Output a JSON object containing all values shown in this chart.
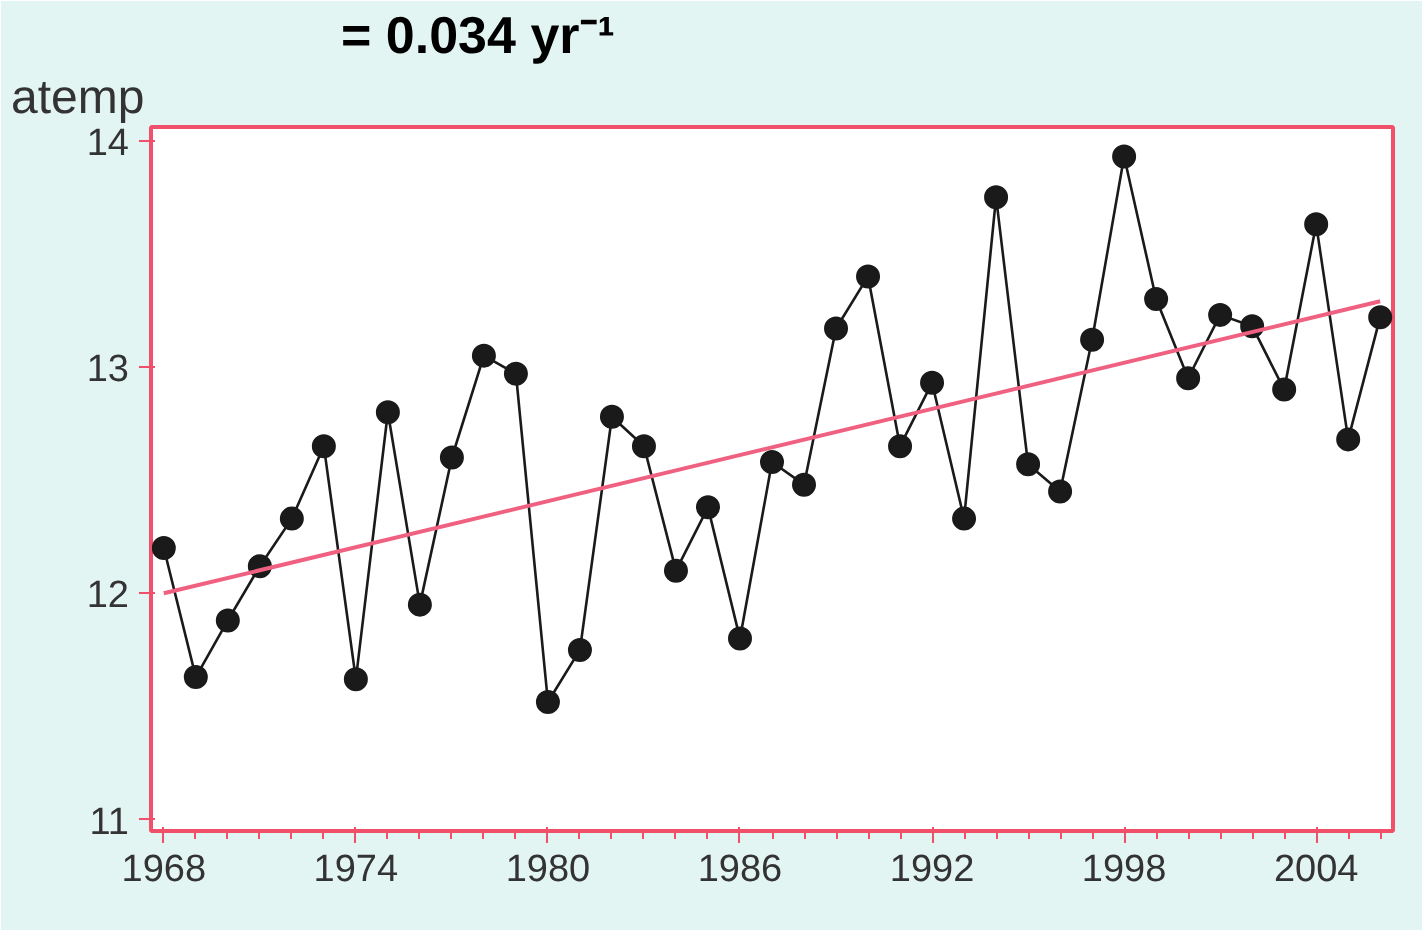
{
  "chart_data": {
    "type": "line",
    "ylabel": "atemp",
    "annotations": [
      "= 0.034 yr⁻¹"
    ],
    "xlim": [
      1967.6,
      2006.4
    ],
    "xticks": [
      1968,
      1974,
      1980,
      1986,
      1992,
      1998,
      2004
    ],
    "ylim": [
      10.95,
      14.06
    ],
    "yticks": [
      11,
      12,
      13,
      14
    ],
    "grid": false,
    "marker": "circle",
    "series": [
      {
        "color": "#1a1a1a",
        "x": [
          1968,
          1969,
          1970,
          1971,
          1972,
          1973,
          1974,
          1975,
          1976,
          1977,
          1978,
          1979,
          1980,
          1981,
          1982,
          1983,
          1984,
          1985,
          1986,
          1987,
          1988,
          1989,
          1990,
          1991,
          1992,
          1993,
          1994,
          1995,
          1996,
          1997,
          1998,
          1999,
          2000,
          2001,
          2002,
          2003,
          2004,
          2005,
          2006
        ],
        "values": [
          12.2,
          11.63,
          11.88,
          12.12,
          12.33,
          12.65,
          11.62,
          12.8,
          11.95,
          12.6,
          13.05,
          12.97,
          11.52,
          11.75,
          12.78,
          12.65,
          12.1,
          12.38,
          11.8,
          12.58,
          12.48,
          13.17,
          13.4,
          12.65,
          12.93,
          12.33,
          13.75,
          12.57,
          12.45,
          13.12,
          13.93,
          13.3,
          12.95,
          13.23,
          13.18,
          12.9,
          13.63,
          12.68,
          13.22
        ]
      },
      {
        "color": "#f06080",
        "marker": "none",
        "x": [
          1968,
          2006
        ],
        "values": [
          12.0,
          13.29
        ]
      }
    ]
  }
}
